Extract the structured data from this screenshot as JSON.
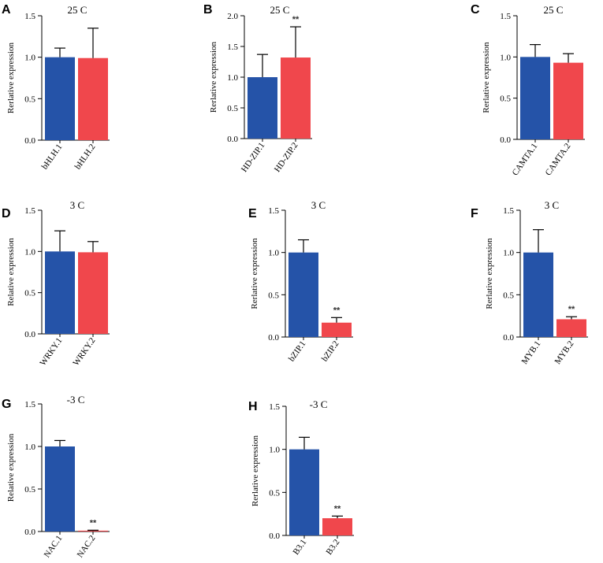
{
  "colors": {
    "series1": "#2553a8",
    "series2": "#f0474c",
    "axis": "#000000"
  },
  "chart_data": [
    {
      "panel": "A",
      "type": "bar",
      "title": "25 C",
      "ylabel": "Rerlative expression",
      "ylim": [
        0,
        1.5
      ],
      "yticks": [
        "0.0",
        "0.5",
        "1.0",
        "1.5"
      ],
      "categories": [
        "bHLH.1",
        "bHLH.2"
      ],
      "values": [
        1.0,
        0.99
      ],
      "errors": [
        0.11,
        0.36
      ],
      "significance": [
        "",
        ""
      ]
    },
    {
      "panel": "B",
      "type": "bar",
      "title": "25 C",
      "ylabel": "Rerlative expression",
      "ylim": [
        0,
        2.0
      ],
      "yticks": [
        "0.0",
        "0.5",
        "1.0",
        "1.5",
        "2.0"
      ],
      "categories": [
        "HD-ZIP.1",
        "HD-ZIP.2"
      ],
      "values": [
        1.0,
        1.32
      ],
      "errors": [
        0.37,
        0.5
      ],
      "significance": [
        "",
        "**"
      ]
    },
    {
      "panel": "C",
      "type": "bar",
      "title": "25 C",
      "ylabel": "Rerlative expression",
      "ylim": [
        0,
        1.5
      ],
      "yticks": [
        "0.0",
        "0.5",
        "1.0",
        "1.5"
      ],
      "categories": [
        "CAMTA.1",
        "CAMTA.2"
      ],
      "values": [
        1.0,
        0.93
      ],
      "errors": [
        0.15,
        0.11
      ],
      "significance": [
        "",
        ""
      ]
    },
    {
      "panel": "D",
      "type": "bar",
      "title": "3 C",
      "ylabel": "Relative expression",
      "ylim": [
        0,
        1.5
      ],
      "yticks": [
        "0.0",
        "0.5",
        "1.0",
        "1.5"
      ],
      "categories": [
        "WRKY.1",
        "WRKY.2"
      ],
      "values": [
        1.0,
        0.99
      ],
      "errors": [
        0.25,
        0.13
      ],
      "significance": [
        "",
        ""
      ]
    },
    {
      "panel": "E",
      "type": "bar",
      "title": "3 C",
      "ylabel": "Rerlative expression",
      "ylim": [
        0,
        1.5
      ],
      "yticks": [
        "0.0",
        "0.5",
        "1.0",
        "1.5"
      ],
      "categories": [
        "bZIP.1",
        "bZIP.2"
      ],
      "values": [
        1.0,
        0.17
      ],
      "errors": [
        0.15,
        0.06
      ],
      "significance": [
        "",
        "**"
      ]
    },
    {
      "panel": "F",
      "type": "bar",
      "title": "3 C",
      "ylabel": "Rerlative expression",
      "ylim": [
        0,
        1.5
      ],
      "yticks": [
        "0.0",
        "0.5",
        "1.0",
        "1.5"
      ],
      "categories": [
        "MYB.1",
        "MYB.2"
      ],
      "values": [
        1.0,
        0.21
      ],
      "errors": [
        0.27,
        0.03
      ],
      "significance": [
        "",
        "**"
      ]
    },
    {
      "panel": "G",
      "type": "bar",
      "title": "-3 C",
      "ylabel": "Relative expression",
      "ylim": [
        0,
        1.5
      ],
      "yticks": [
        "0.0",
        "0.5",
        "1.0",
        "1.5"
      ],
      "categories": [
        "NAC.1",
        "NAC.2"
      ],
      "values": [
        1.0,
        0.01
      ],
      "errors": [
        0.07,
        0.005
      ],
      "significance": [
        "",
        "**"
      ]
    },
    {
      "panel": "H",
      "type": "bar",
      "title": "-3 C",
      "ylabel": "Rerlative expression",
      "ylim": [
        0,
        1.5
      ],
      "yticks": [
        "0.0",
        "0.5",
        "1.0",
        "1.5"
      ],
      "categories": [
        "B3.1",
        "B3.2"
      ],
      "values": [
        1.0,
        0.2
      ],
      "errors": [
        0.14,
        0.025
      ],
      "significance": [
        "",
        "**"
      ]
    }
  ]
}
